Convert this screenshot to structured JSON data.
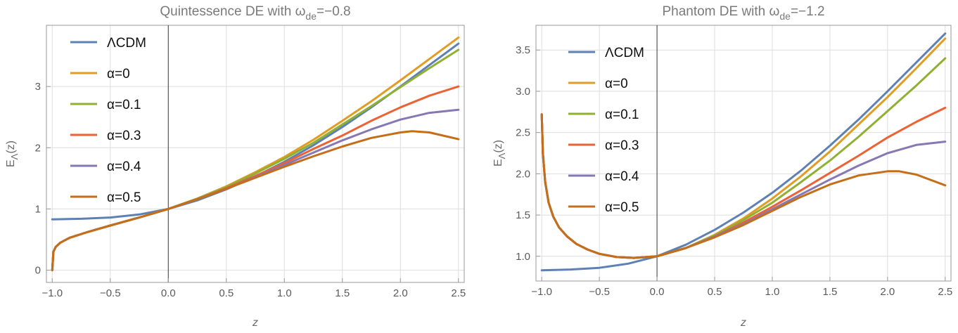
{
  "chart_data": [
    {
      "type": "line",
      "title": "Quintessence DE with ω",
      "title_sub": "de",
      "title_tail": "=−0.8",
      "xlabel": "z",
      "ylabel": "E",
      "ylabel_sub": "Λ",
      "ylabel_tail": "(z)",
      "xlim": [
        -1.05,
        2.55
      ],
      "ylim": [
        -0.2,
        4.0
      ],
      "xticks": [
        -1.0,
        -0.5,
        0.0,
        0.5,
        1.0,
        1.5,
        2.0,
        2.5
      ],
      "xtick_labels": [
        "−1.0",
        "−0.5",
        "0.0",
        "0.5",
        "1.0",
        "1.5",
        "2.0",
        "2.5"
      ],
      "yticks": [
        0,
        1,
        2,
        3
      ],
      "ytick_labels": [
        "0",
        "1",
        "2",
        "3"
      ],
      "grid": true,
      "legend_position": "top-left",
      "series": [
        {
          "name": "ΛCDM",
          "color": "#5E81B5",
          "x": [
            -1.0,
            -0.75,
            -0.5,
            -0.25,
            0.0,
            0.25,
            0.5,
            0.75,
            1.0,
            1.25,
            1.5,
            1.75,
            2.0,
            2.25,
            2.5
          ],
          "y": [
            0.83,
            0.84,
            0.86,
            0.91,
            1.0,
            1.14,
            1.32,
            1.53,
            1.77,
            2.04,
            2.34,
            2.66,
            3.0,
            3.35,
            3.7
          ]
        },
        {
          "name": "α=0",
          "color": "#E19C24",
          "x": [
            -1.0,
            -0.99,
            -0.97,
            -0.93,
            -0.85,
            -0.7,
            -0.5,
            -0.25,
            0.0,
            0.25,
            0.5,
            0.75,
            1.0,
            1.25,
            1.5,
            1.75,
            2.0,
            2.25,
            2.5
          ],
          "y": [
            0.0,
            0.3,
            0.38,
            0.45,
            0.53,
            0.62,
            0.73,
            0.86,
            1.0,
            1.17,
            1.37,
            1.6,
            1.85,
            2.13,
            2.44,
            2.76,
            3.1,
            3.45,
            3.8
          ]
        },
        {
          "name": "α=0.1",
          "color": "#8FB032",
          "x": [
            -1.0,
            -0.99,
            -0.97,
            -0.93,
            -0.85,
            -0.7,
            -0.5,
            -0.25,
            0.0,
            0.25,
            0.5,
            0.75,
            1.0,
            1.25,
            1.5,
            1.75,
            2.0,
            2.25,
            2.5
          ],
          "y": [
            0.0,
            0.3,
            0.38,
            0.45,
            0.53,
            0.62,
            0.73,
            0.86,
            1.0,
            1.17,
            1.36,
            1.58,
            1.82,
            2.08,
            2.38,
            2.68,
            2.99,
            3.3,
            3.6
          ]
        },
        {
          "name": "α=0.3",
          "color": "#EB6235",
          "x": [
            -1.0,
            -0.99,
            -0.97,
            -0.93,
            -0.85,
            -0.7,
            -0.5,
            -0.25,
            0.0,
            0.25,
            0.5,
            0.75,
            1.0,
            1.25,
            1.5,
            1.75,
            2.0,
            2.25,
            2.5
          ],
          "y": [
            0.0,
            0.3,
            0.38,
            0.45,
            0.53,
            0.62,
            0.73,
            0.86,
            1.0,
            1.16,
            1.34,
            1.54,
            1.75,
            1.98,
            2.2,
            2.44,
            2.66,
            2.85,
            3.0
          ]
        },
        {
          "name": "α=0.4",
          "color": "#8778B3",
          "x": [
            -1.0,
            -0.99,
            -0.97,
            -0.93,
            -0.85,
            -0.7,
            -0.5,
            -0.25,
            0.0,
            0.25,
            0.5,
            0.75,
            1.0,
            1.25,
            1.5,
            1.75,
            2.0,
            2.25,
            2.5
          ],
          "y": [
            0.0,
            0.3,
            0.38,
            0.45,
            0.53,
            0.62,
            0.73,
            0.86,
            1.0,
            1.16,
            1.33,
            1.52,
            1.72,
            1.92,
            2.12,
            2.3,
            2.46,
            2.57,
            2.62
          ]
        },
        {
          "name": "α=0.5",
          "color": "#C56E1A",
          "x": [
            -1.0,
            -0.99,
            -0.97,
            -0.93,
            -0.85,
            -0.7,
            -0.5,
            -0.25,
            0.0,
            0.25,
            0.5,
            0.75,
            1.0,
            1.25,
            1.5,
            1.75,
            2.0,
            2.1,
            2.25,
            2.5
          ],
          "y": [
            0.0,
            0.3,
            0.38,
            0.45,
            0.53,
            0.62,
            0.73,
            0.86,
            1.0,
            1.16,
            1.33,
            1.51,
            1.69,
            1.86,
            2.02,
            2.16,
            2.25,
            2.27,
            2.25,
            2.14
          ]
        }
      ]
    },
    {
      "type": "line",
      "title": "Phantom DE with ω",
      "title_sub": "de",
      "title_tail": "=−1.2",
      "xlabel": "z",
      "ylabel": "E",
      "ylabel_sub": "Λ",
      "ylabel_tail": "(z)",
      "xlim": [
        -1.05,
        2.55
      ],
      "ylim": [
        0.7,
        3.8
      ],
      "xticks": [
        -1.0,
        -0.5,
        0.0,
        0.5,
        1.0,
        1.5,
        2.0,
        2.5
      ],
      "xtick_labels": [
        "−1.0",
        "−0.5",
        "0.0",
        "0.5",
        "1.0",
        "1.5",
        "2.0",
        "2.5"
      ],
      "yticks": [
        1.0,
        1.5,
        2.0,
        2.5,
        3.0,
        3.5
      ],
      "ytick_labels": [
        "1.0",
        "1.5",
        "2.0",
        "2.5",
        "3.0",
        "3.5"
      ],
      "grid": true,
      "legend_position": "top-left",
      "series": [
        {
          "name": "ΛCDM",
          "color": "#5E81B5",
          "x": [
            -1.0,
            -0.75,
            -0.5,
            -0.25,
            0.0,
            0.25,
            0.5,
            0.75,
            1.0,
            1.25,
            1.5,
            1.75,
            2.0,
            2.25,
            2.5
          ],
          "y": [
            0.83,
            0.84,
            0.86,
            0.91,
            1.0,
            1.14,
            1.32,
            1.53,
            1.77,
            2.04,
            2.34,
            2.66,
            3.0,
            3.35,
            3.7
          ]
        },
        {
          "name": "α=0",
          "color": "#E19C24",
          "x": [
            -1.0,
            -0.99,
            -0.97,
            -0.94,
            -0.9,
            -0.85,
            -0.78,
            -0.7,
            -0.6,
            -0.5,
            -0.35,
            -0.2,
            0.0,
            0.25,
            0.5,
            0.75,
            1.0,
            1.25,
            1.5,
            1.75,
            2.0,
            2.25,
            2.5
          ],
          "y": [
            2.72,
            2.25,
            1.9,
            1.65,
            1.48,
            1.35,
            1.24,
            1.15,
            1.08,
            1.03,
            0.99,
            0.98,
            1.0,
            1.1,
            1.26,
            1.46,
            1.7,
            1.97,
            2.27,
            2.6,
            2.93,
            3.28,
            3.64
          ]
        },
        {
          "name": "α=0.1",
          "color": "#8FB032",
          "x": [
            -1.0,
            -0.99,
            -0.97,
            -0.94,
            -0.9,
            -0.85,
            -0.78,
            -0.7,
            -0.6,
            -0.5,
            -0.35,
            -0.2,
            0.0,
            0.25,
            0.5,
            0.75,
            1.0,
            1.25,
            1.5,
            1.75,
            2.0,
            2.25,
            2.5
          ],
          "y": [
            2.72,
            2.25,
            1.9,
            1.65,
            1.48,
            1.35,
            1.24,
            1.15,
            1.08,
            1.03,
            0.99,
            0.98,
            1.0,
            1.1,
            1.25,
            1.44,
            1.65,
            1.9,
            2.16,
            2.45,
            2.76,
            3.07,
            3.4
          ]
        },
        {
          "name": "α=0.3",
          "color": "#EB6235",
          "x": [
            -1.0,
            -0.99,
            -0.97,
            -0.94,
            -0.9,
            -0.85,
            -0.78,
            -0.7,
            -0.6,
            -0.5,
            -0.35,
            -0.2,
            0.0,
            0.25,
            0.5,
            0.75,
            1.0,
            1.25,
            1.5,
            1.75,
            2.0,
            2.25,
            2.5
          ],
          "y": [
            2.72,
            2.25,
            1.9,
            1.65,
            1.48,
            1.35,
            1.24,
            1.15,
            1.08,
            1.03,
            0.99,
            0.98,
            1.0,
            1.1,
            1.24,
            1.41,
            1.6,
            1.8,
            2.01,
            2.22,
            2.44,
            2.63,
            2.8
          ]
        },
        {
          "name": "α=0.4",
          "color": "#8778B3",
          "x": [
            -1.0,
            -0.99,
            -0.97,
            -0.94,
            -0.9,
            -0.85,
            -0.78,
            -0.7,
            -0.6,
            -0.5,
            -0.35,
            -0.2,
            0.0,
            0.25,
            0.5,
            0.75,
            1.0,
            1.25,
            1.5,
            1.75,
            2.0,
            2.25,
            2.5
          ],
          "y": [
            2.72,
            2.25,
            1.9,
            1.65,
            1.48,
            1.35,
            1.24,
            1.15,
            1.08,
            1.03,
            0.99,
            0.98,
            1.0,
            1.1,
            1.24,
            1.39,
            1.57,
            1.75,
            1.93,
            2.1,
            2.25,
            2.35,
            2.39
          ]
        },
        {
          "name": "α=0.5",
          "color": "#C56E1A",
          "x": [
            -1.0,
            -0.99,
            -0.97,
            -0.94,
            -0.9,
            -0.85,
            -0.78,
            -0.7,
            -0.6,
            -0.5,
            -0.35,
            -0.2,
            0.0,
            0.25,
            0.5,
            0.75,
            1.0,
            1.25,
            1.5,
            1.75,
            2.0,
            2.1,
            2.25,
            2.5
          ],
          "y": [
            2.72,
            2.25,
            1.9,
            1.65,
            1.48,
            1.35,
            1.24,
            1.15,
            1.08,
            1.03,
            0.99,
            0.98,
            1.0,
            1.1,
            1.23,
            1.38,
            1.55,
            1.72,
            1.87,
            1.98,
            2.03,
            2.03,
            1.99,
            1.86
          ]
        }
      ]
    }
  ]
}
